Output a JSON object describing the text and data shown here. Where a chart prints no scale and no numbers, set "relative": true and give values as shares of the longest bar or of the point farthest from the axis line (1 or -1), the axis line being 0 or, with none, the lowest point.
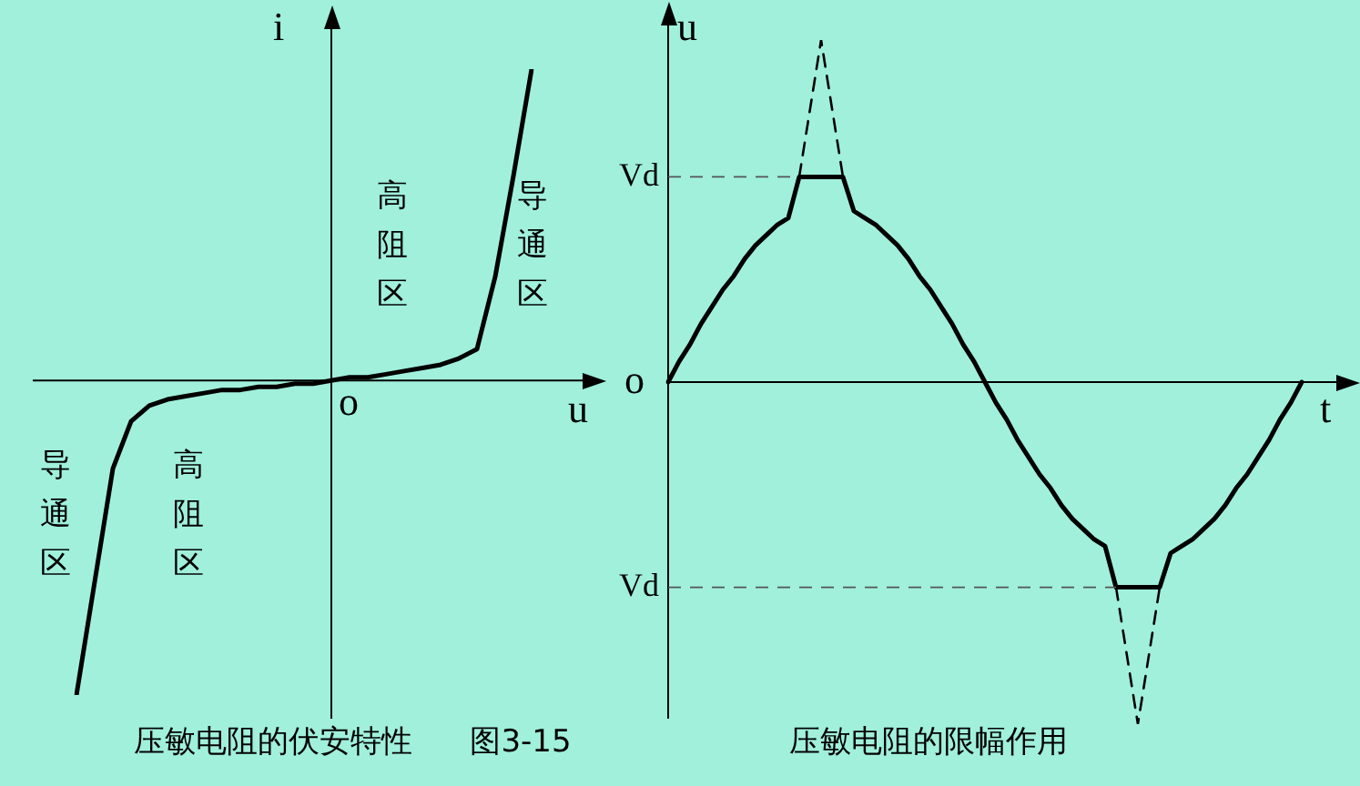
{
  "chart_data": [
    {
      "type": "line",
      "title": "压敏电阻的伏安特性",
      "xlabel": "u",
      "ylabel": "i",
      "relative": true,
      "annotations": [
        "高阻区",
        "导通区",
        "导通区",
        "高阻区",
        "o",
        "图3-15"
      ],
      "categories": [
        null,
        null,
        null,
        null,
        null,
        null,
        null,
        null,
        null,
        null,
        null,
        null,
        null,
        null,
        null,
        null,
        null,
        null,
        null,
        null,
        null,
        null,
        null,
        null,
        null,
        null
      ],
      "series": [
        {
          "color": "#000000",
          "line_style": "solid",
          "values": [
            -1,
            -0.64,
            -0.28,
            -0.13,
            -0.08,
            -0.06,
            -0.05,
            -0.04,
            -0.03,
            -0.03,
            -0.02,
            -0.02,
            -0.01,
            -0.01,
            0,
            0.01,
            0.01,
            0.02,
            0.03,
            0.04,
            0.05,
            0.07,
            0.1,
            0.33,
            0.65,
            0.99
          ]
        }
      ]
    },
    {
      "type": "line",
      "title": "压敏电阻的限幅作用",
      "xlabel": "t",
      "ylabel": "u",
      "relative": true,
      "annotations": [
        "o"
      ],
      "categories": [
        null,
        null,
        null,
        null,
        null,
        null,
        null,
        null,
        null,
        null,
        null,
        null,
        null,
        null,
        null,
        null,
        null,
        null,
        null,
        null,
        null,
        null,
        null,
        null,
        null,
        null,
        null,
        null,
        null,
        null,
        null,
        null,
        null,
        null,
        null,
        null,
        null,
        null,
        null,
        null,
        null,
        null,
        null,
        null,
        null,
        null,
        null,
        null,
        null,
        null,
        null,
        null,
        null,
        null,
        null,
        null,
        null,
        null,
        null
      ],
      "series": [
        {
          "color": "#000000",
          "line_style": "solid",
          "values": [
            0,
            0.06,
            0.11,
            0.17,
            0.22,
            0.27,
            0.31,
            0.36,
            0.4,
            0.43,
            0.46,
            0.48,
            0.6,
            0.6,
            0.6,
            0.6,
            0.6,
            0.5,
            0.48,
            0.46,
            0.43,
            0.4,
            0.36,
            0.31,
            0.27,
            0.22,
            0.17,
            0.11,
            0.06,
            0,
            -0.06,
            -0.11,
            -0.17,
            -0.22,
            -0.27,
            -0.31,
            -0.36,
            -0.4,
            -0.43,
            -0.46,
            -0.48,
            -0.6,
            -0.6,
            -0.6,
            -0.6,
            -0.6,
            -0.5,
            -0.48,
            -0.46,
            -0.43,
            -0.4,
            -0.36,
            -0.31,
            -0.27,
            -0.22,
            -0.17,
            -0.11,
            -0.06,
            0
          ]
        },
        {
          "color": "#000000",
          "line_style": "dashed",
          "values": [
            null,
            null,
            null,
            null,
            null,
            null,
            null,
            null,
            null,
            null,
            null,
            null,
            0.6,
            0.8,
            1,
            0.8,
            0.6,
            null,
            null,
            null,
            null,
            null,
            null,
            null,
            null,
            null,
            null,
            null,
            null,
            null,
            null,
            null,
            null,
            null,
            null,
            null,
            null,
            null,
            null,
            null,
            null,
            -0.6,
            -0.8,
            -1,
            -0.8,
            -0.6,
            null,
            null,
            null,
            null,
            null,
            null,
            null,
            null,
            null,
            null,
            null,
            null,
            null
          ]
        }
      ],
      "ref_lines": [
        {
          "axis": "y",
          "value": 0.6,
          "label": "Vd",
          "line_style": "dashed"
        },
        {
          "axis": "y",
          "value": -0.6,
          "label": "Vd",
          "line_style": "dashed"
        }
      ]
    }
  ]
}
